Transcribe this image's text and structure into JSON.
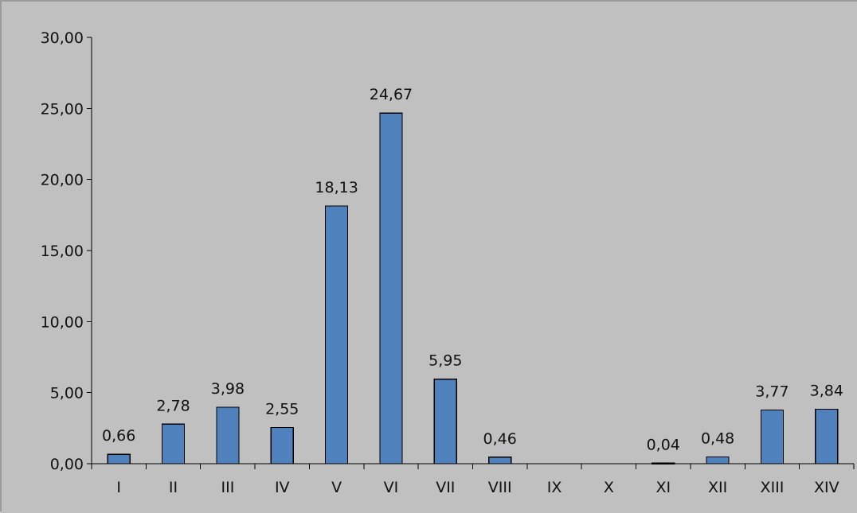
{
  "chart_data": {
    "type": "bar",
    "categories": [
      "I",
      "II",
      "III",
      "IV",
      "V",
      "VI",
      "VII",
      "VIII",
      "IX",
      "X",
      "XI",
      "XII",
      "XIII",
      "XIV"
    ],
    "values": [
      0.66,
      2.78,
      3.98,
      2.55,
      18.13,
      24.67,
      5.95,
      0.46,
      0,
      0,
      0.04,
      0.48,
      3.77,
      3.84
    ],
    "data_labels": [
      "0,66",
      "2,78",
      "3,98",
      "2,55",
      "18,13",
      "24,67",
      "5,95",
      "0,46",
      "",
      "",
      "0,04",
      "0,48",
      "3,77",
      "3,84"
    ],
    "y_tick_labels": [
      "0,00",
      "5,00",
      "10,00",
      "15,00",
      "20,00",
      "25,00",
      "30,00"
    ],
    "y_ticks": [
      0,
      5,
      10,
      15,
      20,
      25,
      30
    ],
    "ylim": [
      0,
      30
    ],
    "grid": false,
    "legend": "none",
    "colors": {
      "bar": "#4f81bd",
      "background": "#c0c0c0",
      "axis": "#000000"
    }
  }
}
